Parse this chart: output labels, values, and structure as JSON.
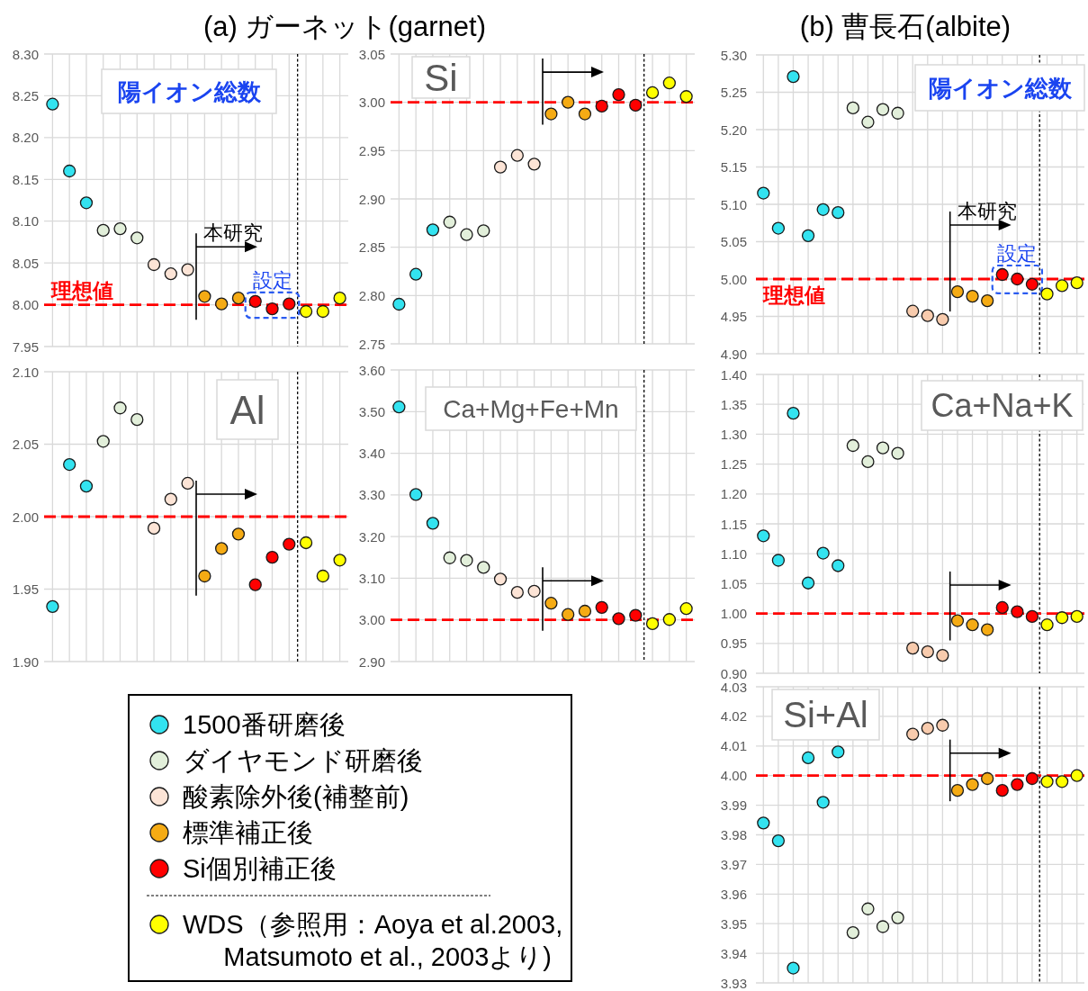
{
  "chart_data": [
    {
      "type": "scatter",
      "title": "陽イオン総数",
      "annotations": [
        "(a) ガーネット(garnet)",
        "本研究",
        "設定"
      ],
      "categories": [
        null,
        null,
        null,
        null,
        null,
        null,
        null,
        null,
        null,
        null,
        null,
        null,
        null,
        null,
        null,
        null,
        null,
        null
      ],
      "ylim": [
        7.95,
        8.3
      ],
      "yticks": [
        7.95,
        {
          "value": 8,
          "label": "8.00"
        },
        8.05,
        {
          "value": 8.1,
          "label": "8.10"
        },
        8.15,
        {
          "value": 8.2,
          "label": "8.20"
        },
        8.25,
        {
          "value": 8.3,
          "label": "8.30"
        }
      ],
      "grid": true,
      "tick_labels": "y",
      "marker": "circle",
      "ref_lines": [
        {
          "axis": "y",
          "value": 8,
          "label": "理想値",
          "color": "#ff0000",
          "line_style": "dashed"
        }
      ],
      "series": [
        {
          "color": "#33e3f0",
          "values": [
            8.24,
            8.16,
            8.122,
            null,
            null,
            null,
            null,
            null,
            null,
            null,
            null,
            null,
            null,
            null,
            null,
            null,
            null,
            null
          ]
        },
        {
          "color": "#e2efda",
          "values": [
            null,
            null,
            null,
            8.089,
            8.091,
            8.08,
            null,
            null,
            null,
            null,
            null,
            null,
            null,
            null,
            null,
            null,
            null,
            null
          ]
        },
        {
          "color": "#fce4d6",
          "values": [
            null,
            null,
            null,
            null,
            null,
            null,
            8.048,
            8.037,
            8.042,
            null,
            null,
            null,
            null,
            null,
            null,
            null,
            null,
            null
          ]
        },
        {
          "color": "#f5ab14",
          "values": [
            null,
            null,
            null,
            null,
            null,
            null,
            null,
            null,
            null,
            8.01,
            8.001,
            8.008,
            null,
            null,
            null,
            null,
            null,
            null
          ]
        },
        {
          "color": "#ff0000",
          "values": [
            null,
            null,
            null,
            null,
            null,
            null,
            null,
            null,
            null,
            null,
            null,
            null,
            8.004,
            7.995,
            8.001,
            null,
            null,
            null
          ]
        },
        {
          "color": "#ffff00",
          "values": [
            null,
            null,
            null,
            null,
            null,
            null,
            null,
            null,
            null,
            null,
            null,
            null,
            null,
            null,
            null,
            7.992,
            7.992,
            8.008
          ]
        }
      ]
    },
    {
      "type": "scatter",
      "title": "Si",
      "categories": [
        null,
        null,
        null,
        null,
        null,
        null,
        null,
        null,
        null,
        null,
        null,
        null,
        null,
        null,
        null,
        null,
        null,
        null
      ],
      "ylim": [
        2.75,
        3.05
      ],
      "yticks": [
        2.75,
        {
          "value": 2.8,
          "label": "2.80"
        },
        2.85,
        {
          "value": 2.9,
          "label": "2.90"
        },
        2.95,
        {
          "value": 3,
          "label": "3.00"
        },
        3.05
      ],
      "grid": true,
      "tick_labels": "y",
      "marker": "circle",
      "ref_lines": [
        {
          "axis": "y",
          "value": 3,
          "color": "#ff0000",
          "line_style": "dashed"
        }
      ],
      "series": [
        {
          "color": "#33e3f0",
          "values": [
            2.791,
            2.822,
            2.868,
            null,
            null,
            null,
            null,
            null,
            null,
            null,
            null,
            null,
            null,
            null,
            null,
            null,
            null,
            null
          ]
        },
        {
          "color": "#e2efda",
          "values": [
            null,
            null,
            null,
            2.876,
            2.863,
            2.867,
            null,
            null,
            null,
            null,
            null,
            null,
            null,
            null,
            null,
            null,
            null,
            null
          ]
        },
        {
          "color": "#fce4d6",
          "values": [
            null,
            null,
            null,
            null,
            null,
            null,
            2.933,
            2.945,
            2.936,
            null,
            null,
            null,
            null,
            null,
            null,
            null,
            null,
            null
          ]
        },
        {
          "color": "#f5ab14",
          "values": [
            null,
            null,
            null,
            null,
            null,
            null,
            null,
            null,
            null,
            2.988,
            3.0,
            2.988,
            null,
            null,
            null,
            null,
            null,
            null
          ]
        },
        {
          "color": "#ff0000",
          "values": [
            null,
            null,
            null,
            null,
            null,
            null,
            null,
            null,
            null,
            null,
            null,
            null,
            2.996,
            3.008,
            2.997,
            null,
            null,
            null
          ]
        },
        {
          "color": "#ffff00",
          "values": [
            null,
            null,
            null,
            null,
            null,
            null,
            null,
            null,
            null,
            null,
            null,
            null,
            null,
            null,
            null,
            3.01,
            3.02,
            3.006
          ]
        }
      ]
    },
    {
      "type": "scatter",
      "title": "Al",
      "categories": [
        null,
        null,
        null,
        null,
        null,
        null,
        null,
        null,
        null,
        null,
        null,
        null,
        null,
        null,
        null,
        null,
        null,
        null
      ],
      "ylim": [
        1.9,
        2.1
      ],
      "yticks": [
        {
          "value": 1.9,
          "label": "1.90"
        },
        1.95,
        {
          "value": 2,
          "label": "2.00"
        },
        2.05,
        {
          "value": 2.1,
          "label": "2.10"
        }
      ],
      "grid": true,
      "tick_labels": "y",
      "marker": "circle",
      "legend": "bottom",
      "ref_lines": [
        {
          "axis": "y",
          "value": 2,
          "color": "#ff0000",
          "line_style": "dashed"
        }
      ],
      "series": [
        {
          "name": "1500番研磨後",
          "color": "#33e3f0",
          "values": [
            1.938,
            2.036,
            2.021,
            null,
            null,
            null,
            null,
            null,
            null,
            null,
            null,
            null,
            null,
            null,
            null,
            null,
            null,
            null
          ]
        },
        {
          "name": "ダイヤモンド研磨後",
          "color": "#e2efda",
          "values": [
            null,
            null,
            null,
            2.052,
            2.075,
            2.067,
            null,
            null,
            null,
            null,
            null,
            null,
            null,
            null,
            null,
            null,
            null,
            null
          ]
        },
        {
          "name": "酸素除外後(補整前)",
          "color": "#fce4d6",
          "values": [
            null,
            null,
            null,
            null,
            null,
            null,
            1.992,
            2.012,
            2.023,
            null,
            null,
            null,
            null,
            null,
            null,
            null,
            null,
            null
          ]
        },
        {
          "name": "標準補正後",
          "color": "#f5ab14",
          "values": [
            null,
            null,
            null,
            null,
            null,
            null,
            null,
            null,
            null,
            1.959,
            1.978,
            1.988,
            null,
            null,
            null,
            null,
            null,
            null
          ]
        },
        {
          "name": "Si個別補正後",
          "color": "#ff0000",
          "values": [
            null,
            null,
            null,
            null,
            null,
            null,
            null,
            null,
            null,
            null,
            null,
            null,
            1.953,
            1.972,
            1.981,
            null,
            null,
            null
          ]
        },
        {
          "name": "WDS（参照用：Aoya et al.2003, Matsumoto et al., 2003より)",
          "color": "#ffff00",
          "values": [
            null,
            null,
            null,
            null,
            null,
            null,
            null,
            null,
            null,
            null,
            null,
            null,
            null,
            null,
            null,
            1.982,
            1.959,
            1.97
          ]
        }
      ]
    },
    {
      "type": "scatter",
      "title": "Ca+Mg+Fe+Mn",
      "categories": [
        null,
        null,
        null,
        null,
        null,
        null,
        null,
        null,
        null,
        null,
        null,
        null,
        null,
        null,
        null,
        null,
        null,
        null
      ],
      "ylim": [
        2.9,
        3.6
      ],
      "yticks": [
        {
          "value": 2.9,
          "label": "2.90"
        },
        {
          "value": 3,
          "label": "3.00"
        },
        {
          "value": 3.1,
          "label": "3.10"
        },
        {
          "value": 3.2,
          "label": "3.20"
        },
        {
          "value": 3.3,
          "label": "3.30"
        },
        {
          "value": 3.4,
          "label": "3.40"
        },
        {
          "value": 3.5,
          "label": "3.50"
        },
        {
          "value": 3.6,
          "label": "3.60"
        }
      ],
      "grid": true,
      "tick_labels": "y",
      "marker": "circle",
      "ref_lines": [
        {
          "axis": "y",
          "value": 3,
          "color": "#ff0000",
          "line_style": "dashed"
        }
      ],
      "series": [
        {
          "color": "#33e3f0",
          "values": [
            3.511,
            3.301,
            3.232,
            null,
            null,
            null,
            null,
            null,
            null,
            null,
            null,
            null,
            null,
            null,
            null,
            null,
            null,
            null
          ]
        },
        {
          "color": "#e2efda",
          "values": [
            null,
            null,
            null,
            3.149,
            3.143,
            3.126,
            null,
            null,
            null,
            null,
            null,
            null,
            null,
            null,
            null,
            null,
            null,
            null
          ]
        },
        {
          "color": "#fce4d6",
          "values": [
            null,
            null,
            null,
            null,
            null,
            null,
            3.098,
            3.066,
            3.069,
            null,
            null,
            null,
            null,
            null,
            null,
            null,
            null,
            null
          ]
        },
        {
          "color": "#f5ab14",
          "values": [
            null,
            null,
            null,
            null,
            null,
            null,
            null,
            null,
            null,
            3.04,
            3.013,
            3.021,
            null,
            null,
            null,
            null,
            null,
            null
          ]
        },
        {
          "color": "#ff0000",
          "values": [
            null,
            null,
            null,
            null,
            null,
            null,
            null,
            null,
            null,
            null,
            null,
            null,
            3.03,
            3.003,
            3.011,
            null,
            null,
            null
          ]
        },
        {
          "color": "#ffff00",
          "values": [
            null,
            null,
            null,
            null,
            null,
            null,
            null,
            null,
            null,
            null,
            null,
            null,
            null,
            null,
            null,
            2.991,
            3.001,
            3.027
          ]
        }
      ]
    },
    {
      "type": "scatter",
      "title": "陽イオン総数",
      "annotations": [
        "(b) 曹長石(albite)",
        "本研究",
        "設定"
      ],
      "categories": [
        null,
        null,
        null,
        null,
        null,
        null,
        null,
        null,
        null,
        null,
        null,
        null,
        null,
        null,
        null,
        null,
        null,
        null,
        null,
        null,
        null,
        null
      ],
      "ylim": [
        4.9,
        5.3
      ],
      "yticks": [
        {
          "value": 4.9,
          "label": "4.90"
        },
        4.95,
        {
          "value": 5,
          "label": "5.00"
        },
        5.05,
        {
          "value": 5.1,
          "label": "5.10"
        },
        5.15,
        {
          "value": 5.2,
          "label": "5.20"
        },
        5.25,
        {
          "value": 5.3,
          "label": "5.30"
        }
      ],
      "grid": true,
      "tick_labels": "y",
      "marker": "circle",
      "ref_lines": [
        {
          "axis": "y",
          "value": 5,
          "label": "理想値",
          "color": "#ff0000",
          "line_style": "dashed"
        }
      ],
      "series": [
        {
          "color": "#33e3f0",
          "values": [
            5.115,
            5.068,
            5.271,
            5.058,
            5.093,
            5.089,
            null,
            null,
            null,
            null,
            null,
            null,
            null,
            null,
            null,
            null,
            null,
            null,
            null,
            null,
            null,
            null
          ]
        },
        {
          "color": "#e2efda",
          "values": [
            null,
            null,
            null,
            null,
            null,
            null,
            5.229,
            5.21,
            5.227,
            5.222,
            null,
            null,
            null,
            null,
            null,
            null,
            null,
            null,
            null,
            null,
            null,
            null
          ]
        },
        {
          "color": "#f8cbad",
          "values": [
            null,
            null,
            null,
            null,
            null,
            null,
            null,
            null,
            null,
            null,
            4.957,
            4.951,
            4.946,
            null,
            null,
            null,
            null,
            null,
            null,
            null,
            null,
            null
          ]
        },
        {
          "color": "#f5ab14",
          "values": [
            null,
            null,
            null,
            null,
            null,
            null,
            null,
            null,
            null,
            null,
            null,
            null,
            null,
            4.983,
            4.977,
            4.971,
            null,
            null,
            null,
            null,
            null,
            null
          ]
        },
        {
          "color": "#ff0000",
          "values": [
            null,
            null,
            null,
            null,
            null,
            null,
            null,
            null,
            null,
            null,
            null,
            null,
            null,
            null,
            null,
            null,
            5.006,
            5.0,
            4.993,
            null,
            null,
            null
          ]
        },
        {
          "color": "#ffff00",
          "values": [
            null,
            null,
            null,
            null,
            null,
            null,
            null,
            null,
            null,
            null,
            null,
            null,
            null,
            null,
            null,
            null,
            null,
            null,
            null,
            4.98,
            4.991,
            4.995
          ]
        }
      ]
    },
    {
      "type": "scatter",
      "title": "Ca+Na+K",
      "categories": [
        null,
        null,
        null,
        null,
        null,
        null,
        null,
        null,
        null,
        null,
        null,
        null,
        null,
        null,
        null,
        null,
        null,
        null,
        null,
        null,
        null,
        null
      ],
      "ylim": [
        0.9,
        1.4
      ],
      "yticks": [
        {
          "value": 0.9,
          "label": "0.90"
        },
        0.95,
        {
          "value": 1,
          "label": "1.00"
        },
        1.05,
        {
          "value": 1.1,
          "label": "1.10"
        },
        1.15,
        {
          "value": 1.2,
          "label": "1.20"
        },
        1.25,
        {
          "value": 1.3,
          "label": "1.30"
        },
        1.35,
        {
          "value": 1.4,
          "label": "1.40"
        }
      ],
      "grid": true,
      "tick_labels": "y",
      "marker": "circle",
      "ref_lines": [
        {
          "axis": "y",
          "value": 1,
          "color": "#ff0000",
          "line_style": "dashed"
        }
      ],
      "series": [
        {
          "color": "#33e3f0",
          "values": [
            1.13,
            1.089,
            1.335,
            1.051,
            1.101,
            1.08,
            null,
            null,
            null,
            null,
            null,
            null,
            null,
            null,
            null,
            null,
            null,
            null,
            null,
            null,
            null,
            null
          ]
        },
        {
          "color": "#e2efda",
          "values": [
            null,
            null,
            null,
            null,
            null,
            null,
            1.281,
            1.254,
            1.277,
            1.268,
            null,
            null,
            null,
            null,
            null,
            null,
            null,
            null,
            null,
            null,
            null,
            null
          ]
        },
        {
          "color": "#f8cbad",
          "values": [
            null,
            null,
            null,
            null,
            null,
            null,
            null,
            null,
            null,
            null,
            0.942,
            0.936,
            0.93,
            null,
            null,
            null,
            null,
            null,
            null,
            null,
            null,
            null
          ]
        },
        {
          "color": "#f5ab14",
          "values": [
            null,
            null,
            null,
            null,
            null,
            null,
            null,
            null,
            null,
            null,
            null,
            null,
            null,
            0.988,
            0.981,
            0.973,
            null,
            null,
            null,
            null,
            null,
            null
          ]
        },
        {
          "color": "#ff0000",
          "values": [
            null,
            null,
            null,
            null,
            null,
            null,
            null,
            null,
            null,
            null,
            null,
            null,
            null,
            null,
            null,
            null,
            1.01,
            1.003,
            0.995,
            null,
            null,
            null
          ]
        },
        {
          "color": "#ffff00",
          "values": [
            null,
            null,
            null,
            null,
            null,
            null,
            null,
            null,
            null,
            null,
            null,
            null,
            null,
            null,
            null,
            null,
            null,
            null,
            null,
            0.981,
            0.993,
            0.995
          ]
        }
      ]
    },
    {
      "type": "scatter",
      "title": "Si+Al",
      "categories": [
        null,
        null,
        null,
        null,
        null,
        null,
        null,
        null,
        null,
        null,
        null,
        null,
        null,
        null,
        null,
        null,
        null,
        null,
        null,
        null,
        null,
        null
      ],
      "ylim": [
        3.93,
        4.03
      ],
      "yticks": [
        3.93,
        3.94,
        3.95,
        3.96,
        3.97,
        3.98,
        3.99,
        {
          "value": 4,
          "label": "4.00"
        },
        4.01,
        4.02,
        4.03
      ],
      "grid": true,
      "tick_labels": "y",
      "marker": "circle",
      "ref_lines": [
        {
          "axis": "y",
          "value": 4,
          "color": "#ff0000",
          "line_style": "dashed"
        }
      ],
      "series": [
        {
          "color": "#33e3f0",
          "values": [
            3.984,
            3.978,
            3.935,
            4.006,
            3.991,
            4.008,
            null,
            null,
            null,
            null,
            null,
            null,
            null,
            null,
            null,
            null,
            null,
            null,
            null,
            null,
            null,
            null
          ]
        },
        {
          "color": "#e2efda",
          "values": [
            null,
            null,
            null,
            null,
            null,
            null,
            3.947,
            3.955,
            3.949,
            3.952,
            null,
            null,
            null,
            null,
            null,
            null,
            null,
            null,
            null,
            null,
            null,
            null
          ]
        },
        {
          "color": "#f8cbad",
          "values": [
            null,
            null,
            null,
            null,
            null,
            null,
            null,
            null,
            null,
            null,
            4.014,
            4.016,
            4.017,
            null,
            null,
            null,
            null,
            null,
            null,
            null,
            null,
            null
          ]
        },
        {
          "color": "#f5ab14",
          "values": [
            null,
            null,
            null,
            null,
            null,
            null,
            null,
            null,
            null,
            null,
            null,
            null,
            null,
            3.995,
            3.997,
            3.999,
            null,
            null,
            null,
            null,
            null,
            null
          ]
        },
        {
          "color": "#ff0000",
          "values": [
            null,
            null,
            null,
            null,
            null,
            null,
            null,
            null,
            null,
            null,
            null,
            null,
            null,
            null,
            null,
            null,
            3.995,
            3.997,
            3.999,
            null,
            null,
            null
          ]
        },
        {
          "color": "#ffff00",
          "values": [
            null,
            null,
            null,
            null,
            null,
            null,
            null,
            null,
            null,
            null,
            null,
            null,
            null,
            null,
            null,
            null,
            null,
            null,
            null,
            3.998,
            3.998,
            4.0
          ]
        }
      ]
    }
  ]
}
